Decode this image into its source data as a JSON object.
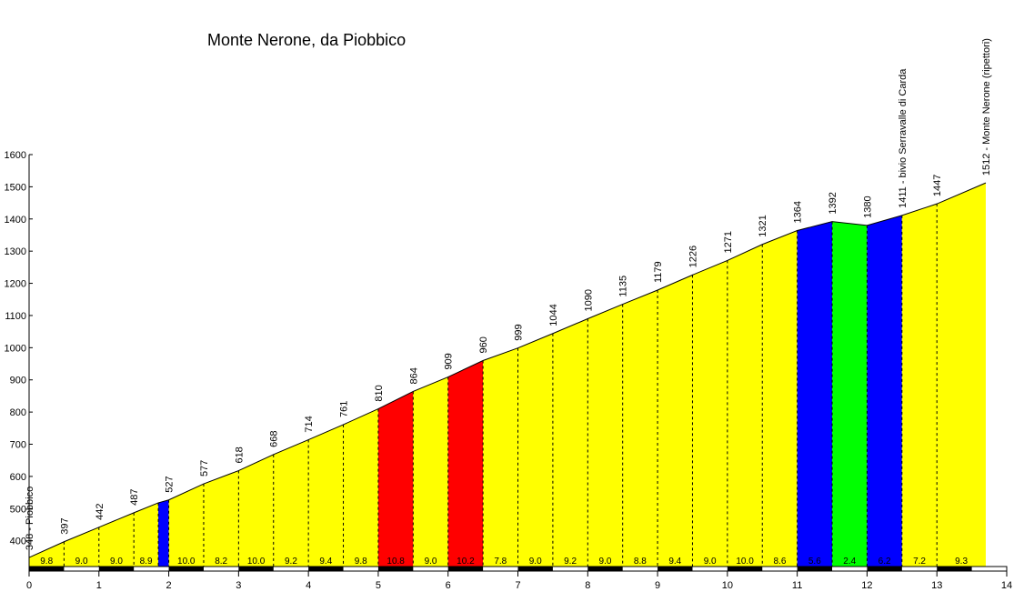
{
  "chart_data": {
    "type": "area",
    "title": "Monte Nerone, da Piobbico",
    "xlabel": "",
    "ylabel": "",
    "xlim": [
      0,
      14
    ],
    "ylim": [
      320,
      1600
    ],
    "x_ticks": [
      0,
      1,
      2,
      3,
      4,
      5,
      6,
      7,
      8,
      9,
      10,
      11,
      12,
      13,
      14
    ],
    "y_ticks": [
      400,
      500,
      600,
      700,
      800,
      900,
      1000,
      1100,
      1200,
      1300,
      1400,
      1500,
      1600
    ],
    "grid": false,
    "legend": "none",
    "points": [
      {
        "x": 0.0,
        "y": 348,
        "label": "348 - Piobbico"
      },
      {
        "x": 0.5,
        "y": 397,
        "label": "397"
      },
      {
        "x": 1.0,
        "y": 442,
        "label": "442"
      },
      {
        "x": 1.5,
        "y": 487,
        "label": "487"
      },
      {
        "x": 1.85,
        "y": 518,
        "label": ""
      },
      {
        "x": 2.0,
        "y": 527,
        "label": "527"
      },
      {
        "x": 2.5,
        "y": 577,
        "label": "577"
      },
      {
        "x": 3.0,
        "y": 618,
        "label": "618"
      },
      {
        "x": 3.5,
        "y": 668,
        "label": "668"
      },
      {
        "x": 4.0,
        "y": 714,
        "label": "714"
      },
      {
        "x": 4.5,
        "y": 761,
        "label": "761"
      },
      {
        "x": 5.0,
        "y": 810,
        "label": "810"
      },
      {
        "x": 5.5,
        "y": 864,
        "label": "864"
      },
      {
        "x": 6.0,
        "y": 909,
        "label": "909"
      },
      {
        "x": 6.5,
        "y": 960,
        "label": "960"
      },
      {
        "x": 7.0,
        "y": 999,
        "label": "999"
      },
      {
        "x": 7.5,
        "y": 1044,
        "label": "1044"
      },
      {
        "x": 8.0,
        "y": 1090,
        "label": "1090"
      },
      {
        "x": 8.5,
        "y": 1135,
        "label": "1135"
      },
      {
        "x": 9.0,
        "y": 1179,
        "label": "1179"
      },
      {
        "x": 9.5,
        "y": 1226,
        "label": "1226"
      },
      {
        "x": 10.0,
        "y": 1271,
        "label": "1271"
      },
      {
        "x": 10.5,
        "y": 1321,
        "label": "1321"
      },
      {
        "x": 11.0,
        "y": 1364,
        "label": "1364"
      },
      {
        "x": 11.5,
        "y": 1392,
        "label": "1392"
      },
      {
        "x": 12.0,
        "y": 1380,
        "label": "1380"
      },
      {
        "x": 12.5,
        "y": 1411,
        "label": "1411 - bivio Serravalle di Carda"
      },
      {
        "x": 13.0,
        "y": 1447,
        "label": "1447"
      },
      {
        "x": 13.7,
        "y": 1512,
        "label": "1512 - Monte Nerone (ripettori)"
      }
    ],
    "segments": [
      {
        "x0": 0.0,
        "x1": 0.5,
        "gradient": "9.8",
        "color": "#ffff00"
      },
      {
        "x0": 0.5,
        "x1": 1.0,
        "gradient": "9.0",
        "color": "#ffff00"
      },
      {
        "x0": 1.0,
        "x1": 1.5,
        "gradient": "9.0",
        "color": "#ffff00"
      },
      {
        "x0": 1.5,
        "x1": 1.85,
        "gradient": "8.9",
        "color": "#ffff00"
      },
      {
        "x0": 1.85,
        "x1": 2.0,
        "gradient": "",
        "color": "#0000ff"
      },
      {
        "x0": 2.0,
        "x1": 2.5,
        "gradient": "10.0",
        "color": "#ffff00"
      },
      {
        "x0": 2.5,
        "x1": 3.0,
        "gradient": "8.2",
        "color": "#ffff00"
      },
      {
        "x0": 3.0,
        "x1": 3.5,
        "gradient": "10.0",
        "color": "#ffff00"
      },
      {
        "x0": 3.5,
        "x1": 4.0,
        "gradient": "9.2",
        "color": "#ffff00"
      },
      {
        "x0": 4.0,
        "x1": 4.5,
        "gradient": "9.4",
        "color": "#ffff00"
      },
      {
        "x0": 4.5,
        "x1": 5.0,
        "gradient": "9.8",
        "color": "#ffff00"
      },
      {
        "x0": 5.0,
        "x1": 5.5,
        "gradient": "10.8",
        "color": "#ff0000"
      },
      {
        "x0": 5.5,
        "x1": 6.0,
        "gradient": "9.0",
        "color": "#ffff00"
      },
      {
        "x0": 6.0,
        "x1": 6.5,
        "gradient": "10.2",
        "color": "#ff0000"
      },
      {
        "x0": 6.5,
        "x1": 7.0,
        "gradient": "7.8",
        "color": "#ffff00"
      },
      {
        "x0": 7.0,
        "x1": 7.5,
        "gradient": "9.0",
        "color": "#ffff00"
      },
      {
        "x0": 7.5,
        "x1": 8.0,
        "gradient": "9.2",
        "color": "#ffff00"
      },
      {
        "x0": 8.0,
        "x1": 8.5,
        "gradient": "9.0",
        "color": "#ffff00"
      },
      {
        "x0": 8.5,
        "x1": 9.0,
        "gradient": "8.8",
        "color": "#ffff00"
      },
      {
        "x0": 9.0,
        "x1": 9.5,
        "gradient": "9.4",
        "color": "#ffff00"
      },
      {
        "x0": 9.5,
        "x1": 10.0,
        "gradient": "9.0",
        "color": "#ffff00"
      },
      {
        "x0": 10.0,
        "x1": 10.5,
        "gradient": "10.0",
        "color": "#ffff00"
      },
      {
        "x0": 10.5,
        "x1": 11.0,
        "gradient": "8.6",
        "color": "#ffff00"
      },
      {
        "x0": 11.0,
        "x1": 11.5,
        "gradient": "5.6",
        "color": "#0000ff"
      },
      {
        "x0": 11.5,
        "x1": 12.0,
        "gradient": "2.4",
        "color": "#00ff00"
      },
      {
        "x0": 12.0,
        "x1": 12.5,
        "gradient": "6.2",
        "color": "#0000ff"
      },
      {
        "x0": 12.5,
        "x1": 13.0,
        "gradient": "7.2",
        "color": "#ffff00"
      },
      {
        "x0": 13.0,
        "x1": 13.7,
        "gradient": "9.3",
        "color": "#ffff00"
      }
    ]
  }
}
